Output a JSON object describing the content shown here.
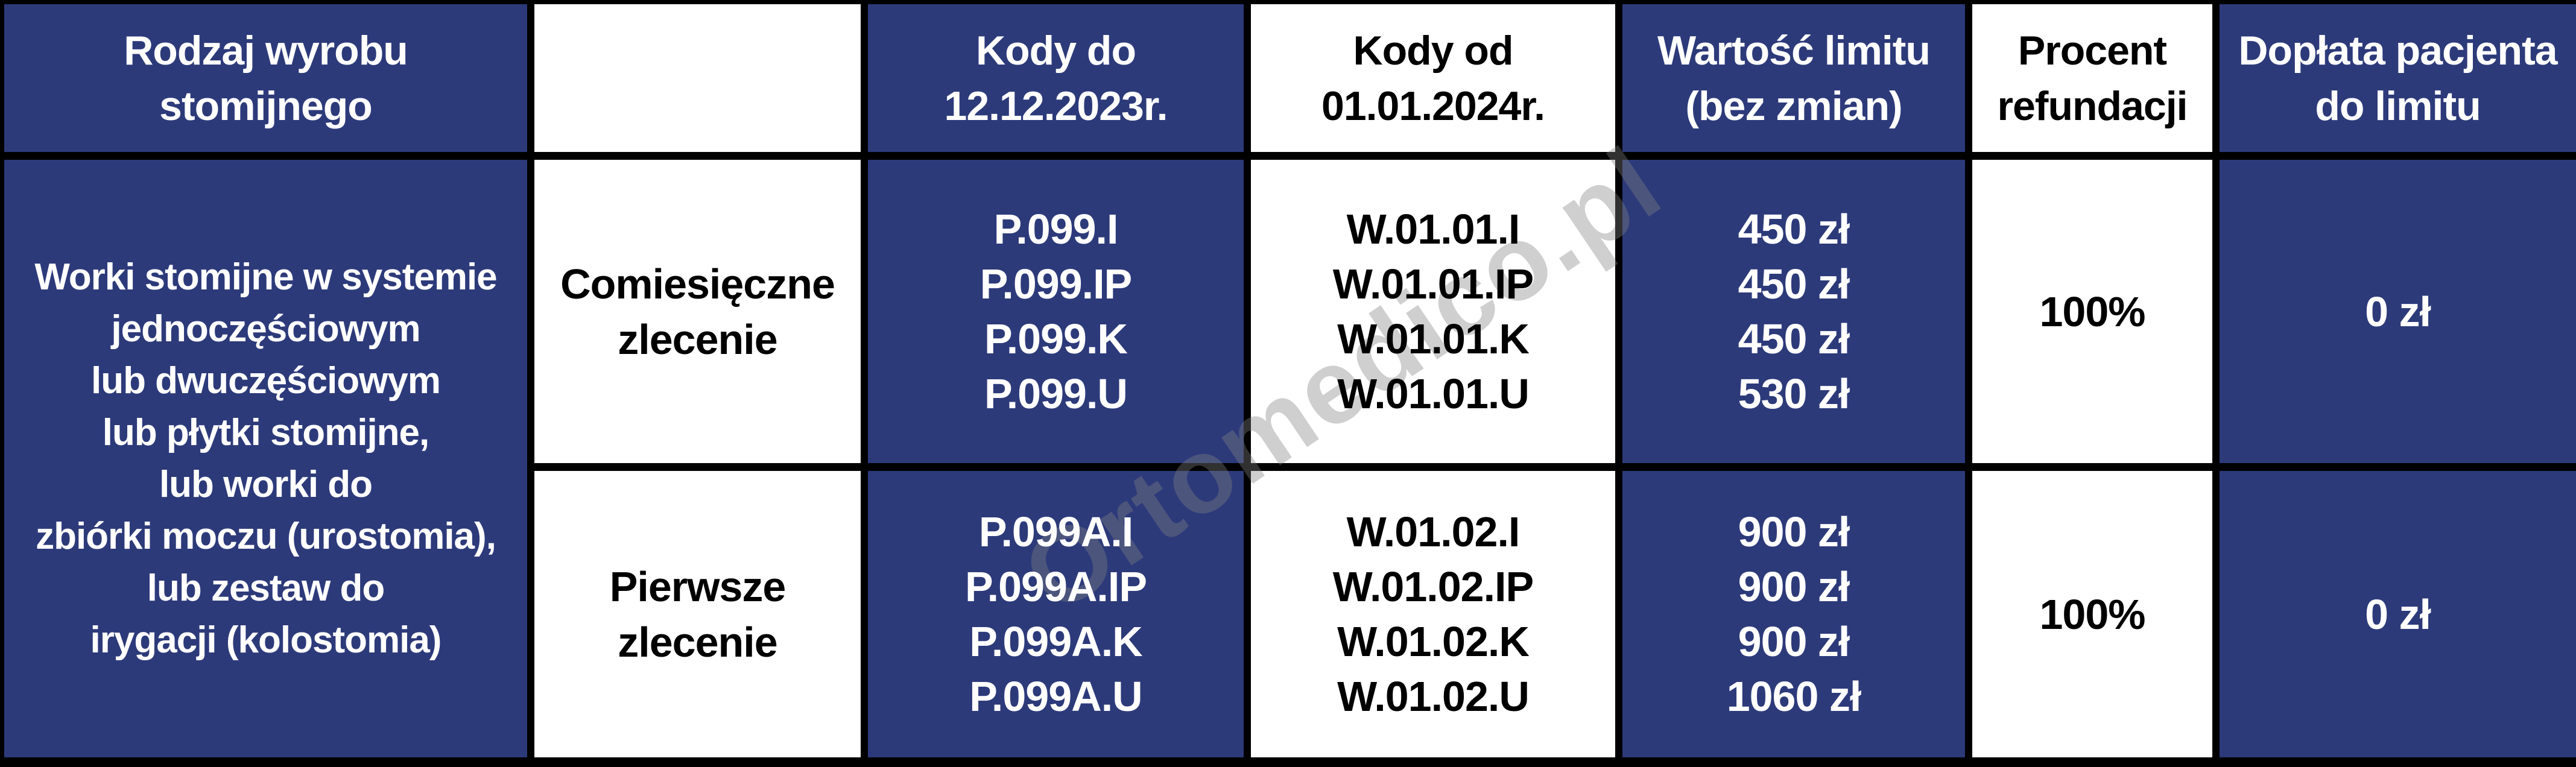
{
  "table": {
    "headers": {
      "product_type": [
        "Rodzaj wyrobu",
        "stomijnego"
      ],
      "order_type": "",
      "codes_until": [
        "Kody do",
        "12.12.2023r."
      ],
      "codes_from": [
        "Kody od",
        "01.01.2024r."
      ],
      "limit_value": [
        "Wartość limitu",
        "(bez zmian)"
      ],
      "refund_percent": [
        "Procent",
        "refundacji"
      ],
      "patient_copay": [
        "Dopłata pacjenta",
        "do limitu"
      ]
    },
    "product_description": [
      "Worki stomijne w systemie",
      "jednoczęściowym",
      "lub dwuczęściowym",
      "lub płytki stomijne,",
      "lub worki do",
      "zbiórki moczu (urostomia),",
      "lub zestaw do",
      "irygacji (kolostomia)"
    ],
    "rows": [
      {
        "order_type": [
          "Comiesięczne",
          "zlecenie"
        ],
        "codes_until": [
          "P.099.I",
          "P.099.IP",
          "P.099.K",
          "P.099.U"
        ],
        "codes_from": [
          "W.01.01.I",
          "W.01.01.IP",
          "W.01.01.K",
          "W.01.01.U"
        ],
        "limit_values": [
          "450 zł",
          "450 zł",
          "450 zł",
          "530 zł"
        ],
        "refund_percent": "100%",
        "patient_copay": "0 zł"
      },
      {
        "order_type": [
          "Pierwsze",
          "zlecenie"
        ],
        "codes_until": [
          "P.099A.I",
          "P.099A.IP",
          "P.099A.K",
          "P.099A.U"
        ],
        "codes_from": [
          "W.01.02.I",
          "W.01.02.IP",
          "W.01.02.K",
          "W.01.02.U"
        ],
        "limit_values": [
          "900 zł",
          "900 zł",
          "900 zł",
          "1060 zł"
        ],
        "refund_percent": "100%",
        "patient_copay": "0 zł"
      }
    ]
  },
  "watermark": "Ortomedico.pl",
  "colors": {
    "primary_blue": "#2d3a7a",
    "border_black": "#000000",
    "white": "#ffffff",
    "watermark_gray": "#828282"
  }
}
